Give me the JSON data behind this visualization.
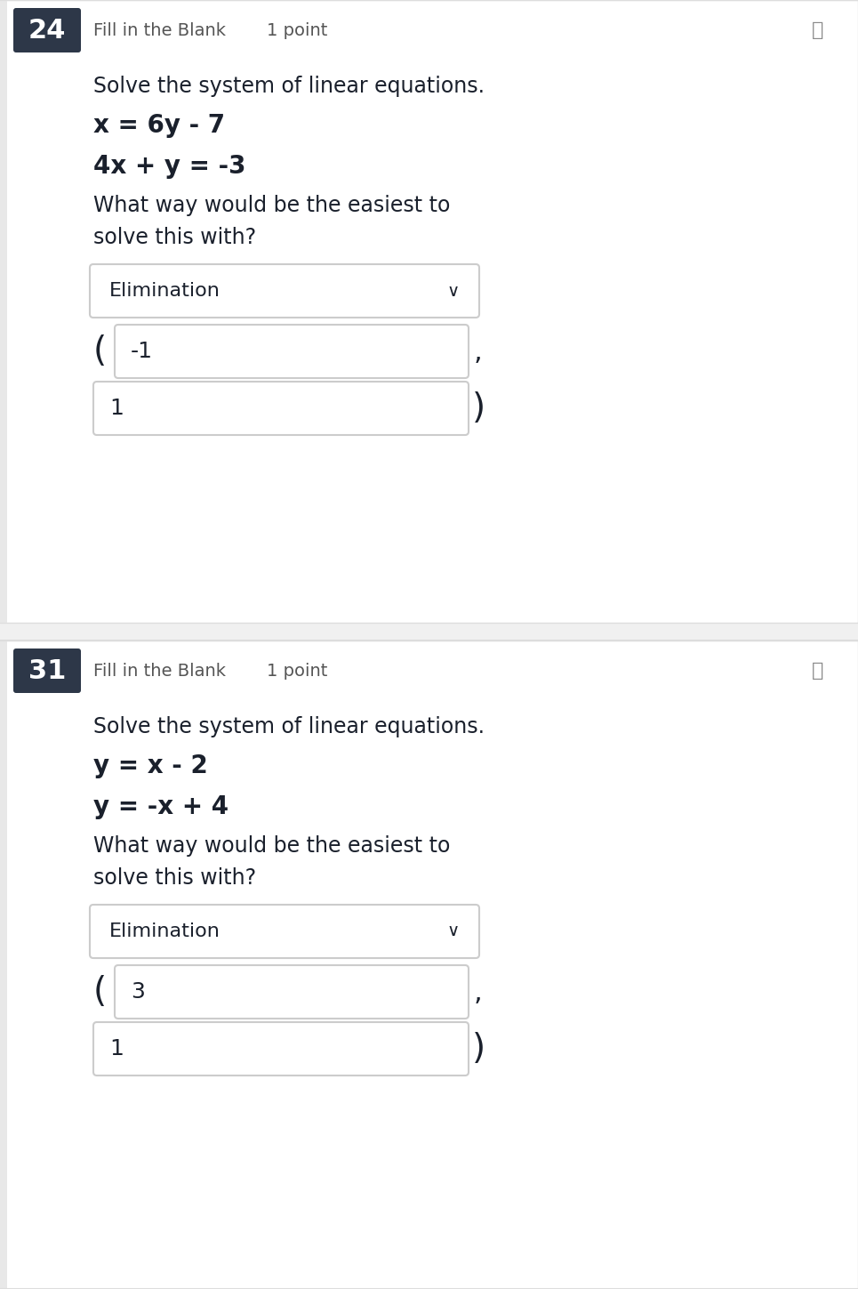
{
  "bg_color": "#f0f0f0",
  "panel_bg": "#ffffff",
  "left_bar_color": "#e8e8e8",
  "number_badge_color": "#2d3748",
  "number_badge_text_color": "#ffffff",
  "header_text_color": "#555555",
  "body_text_color": "#1a202c",
  "box_border_color": "#cccccc",
  "box_fill_color": "#ffffff",
  "divider_color": "#dddddd",
  "pin_color": "#888888",
  "question1": {
    "number": "24",
    "label": "Fill in the Blank",
    "points": "1 point",
    "intro": "Solve the system of linear equations.",
    "eq1": "x = 6y - 7",
    "eq2": "4x + y = -3",
    "question": "What way would be the easiest to\nsolve this with?",
    "dropdown_value": "Elimination",
    "answer1_label": "(",
    "answer1_value": "-1",
    "answer1_suffix": ",",
    "answer2_value": "1",
    "answer2_suffix": ")"
  },
  "question2": {
    "number": "31",
    "label": "Fill in the Blank",
    "points": "1 point",
    "intro": "Solve the system of linear equations.",
    "eq1": "y = x - 2",
    "eq2": "y = -x + 4",
    "question": "What way would be the easiest to\nsolve this with?",
    "dropdown_value": "Elimination",
    "answer1_label": "(",
    "answer1_value": "3",
    "answer1_suffix": ",",
    "answer2_value": "1",
    "answer2_suffix": ")"
  }
}
